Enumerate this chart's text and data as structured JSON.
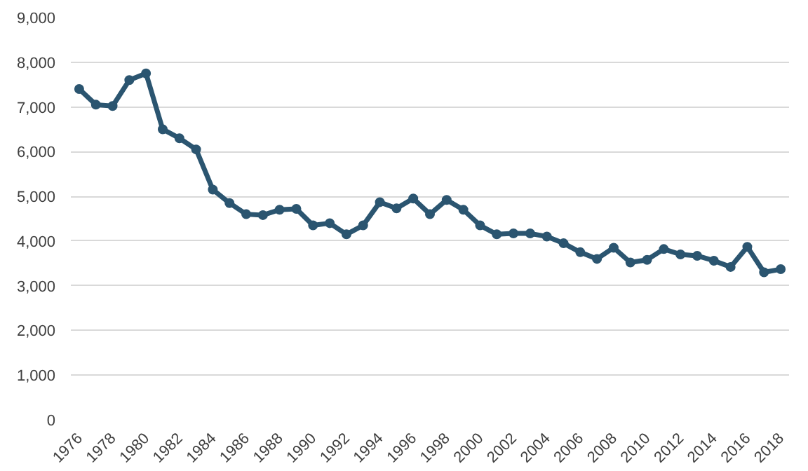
{
  "chart_data": {
    "type": "line",
    "x": [
      1976,
      1977,
      1978,
      1979,
      1980,
      1981,
      1982,
      1983,
      1984,
      1985,
      1986,
      1987,
      1988,
      1989,
      1990,
      1991,
      1992,
      1993,
      1994,
      1995,
      1996,
      1997,
      1998,
      1999,
      2000,
      2001,
      2002,
      2003,
      2004,
      2005,
      2006,
      2007,
      2008,
      2009,
      2010,
      2011,
      2012,
      2013,
      2014,
      2015,
      2016,
      2017,
      2018
    ],
    "series": [
      {
        "color": "#2b5570",
        "values": [
          7400,
          7050,
          7020,
          7600,
          7750,
          6500,
          6300,
          6050,
          5150,
          4850,
          4600,
          4580,
          4700,
          4720,
          4350,
          4400,
          4150,
          4350,
          4870,
          4730,
          4950,
          4600,
          4920,
          4700,
          4350,
          4150,
          4170,
          4170,
          4100,
          3950,
          3750,
          3600,
          3850,
          3520,
          3580,
          3820,
          3700,
          3670,
          3560,
          3420,
          3870,
          3300,
          3370
        ]
      }
    ],
    "xlim": [
      1975.5,
      2018.5
    ],
    "xticks": [
      1976,
      1978,
      1980,
      1982,
      1984,
      1986,
      1988,
      1990,
      1992,
      1994,
      1996,
      1998,
      2000,
      2002,
      2004,
      2006,
      2008,
      2010,
      2012,
      2014,
      2016,
      2018
    ],
    "ylim": [
      0,
      9000
    ],
    "yticks": [
      {
        "value": 0,
        "label": "0"
      },
      {
        "value": 1000,
        "label": "1,000"
      },
      {
        "value": 2000,
        "label": "2,000"
      },
      {
        "value": 3000,
        "label": "3,000"
      },
      {
        "value": 4000,
        "label": "4,000"
      },
      {
        "value": 5000,
        "label": "5,000"
      },
      {
        "value": 6000,
        "label": "6,000"
      },
      {
        "value": 7000,
        "label": "7,000"
      },
      {
        "value": 8000,
        "label": "8,000"
      },
      {
        "value": 9000,
        "label": "9,000"
      }
    ],
    "grid": "y",
    "marker": "circle",
    "line_style": "solid"
  }
}
